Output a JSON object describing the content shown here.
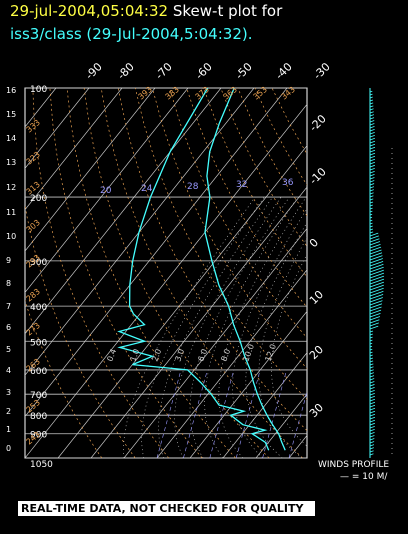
{
  "header": {
    "datetime": "29-jul-2004,05:04:32",
    "title_suffix": "Skew-t plot for",
    "subtitle": "iss3/class (29-Jul-2004,5:04:32)."
  },
  "banner": "REAL-TIME DATA, NOT CHECKED FOR QUALITY",
  "winds": {
    "label": "WINDS PROFILE",
    "scale": "— = 10 M/"
  },
  "colors": {
    "background": "#000000",
    "grid": "#c8c8c8",
    "trace": "#44ffff",
    "dry_adiabat": "#e8a050",
    "moist_adiabat": "#d0d0d0",
    "mixing_ratio": "#9999ff",
    "title_date": "#ffff44"
  },
  "chart_data": {
    "type": "line",
    "title": "Skew-t plot for",
    "xlabel": "",
    "ylabel": "",
    "pressure_levels": [
      "100",
      "200",
      "300",
      "400",
      "500",
      "600",
      "700",
      "800",
      "900",
      "1050"
    ],
    "temperature_ticks_top": [
      "-90",
      "-80",
      "-70",
      "-60",
      "-50",
      "-40",
      "-30"
    ],
    "temperature_ticks_right": [
      "-20",
      "-10",
      "0",
      "10",
      "20",
      "30"
    ],
    "height_km_ticks": [
      "0",
      "1",
      "2",
      "3",
      "4",
      "5",
      "6",
      "7",
      "8",
      "9",
      "10",
      "11",
      "12",
      "13",
      "14",
      "15",
      "16"
    ],
    "mixing_ratio_labels": [
      "20",
      "24",
      "28",
      "32",
      "36"
    ],
    "dry_adiabat_labels": [
      "243",
      "253",
      "263",
      "273",
      "283",
      "293",
      "303",
      "313",
      "323",
      "333",
      "393",
      "383",
      "373",
      "363",
      "353",
      "343"
    ],
    "moist_adiabat_labels": [
      "0.4",
      "1.0",
      "2.0",
      "3.0",
      "6.0",
      "8.0",
      "10.0",
      "12.0"
    ],
    "series": [
      {
        "kind": "temperature",
        "points": [
          [
            1000,
            27
          ],
          [
            950,
            24
          ],
          [
            900,
            21
          ],
          [
            850,
            17
          ],
          [
            800,
            13
          ],
          [
            750,
            9
          ],
          [
            700,
            5
          ],
          [
            650,
            1
          ],
          [
            600,
            -3
          ],
          [
            550,
            -8
          ],
          [
            500,
            -13
          ],
          [
            450,
            -19
          ],
          [
            400,
            -25
          ],
          [
            350,
            -33
          ],
          [
            300,
            -41
          ],
          [
            250,
            -50
          ],
          [
            200,
            -57
          ],
          [
            175,
            -63
          ],
          [
            150,
            -68
          ],
          [
            125,
            -72
          ],
          [
            100,
            -76
          ]
        ]
      },
      {
        "kind": "dewpoint",
        "points": [
          [
            1000,
            22
          ],
          [
            950,
            19
          ],
          [
            900,
            13
          ],
          [
            880,
            16
          ],
          [
            850,
            8
          ],
          [
            800,
            2
          ],
          [
            780,
            5
          ],
          [
            750,
            -4
          ],
          [
            700,
            -9
          ],
          [
            650,
            -15
          ],
          [
            600,
            -22
          ],
          [
            580,
            -40
          ],
          [
            550,
            -36
          ],
          [
            520,
            -48
          ],
          [
            500,
            -42
          ],
          [
            470,
            -52
          ],
          [
            450,
            -46
          ],
          [
            420,
            -52
          ],
          [
            400,
            -55
          ],
          [
            350,
            -60
          ],
          [
            300,
            -65
          ],
          [
            250,
            -70
          ],
          [
            200,
            -75
          ],
          [
            150,
            -80
          ],
          [
            100,
            -84
          ]
        ]
      }
    ]
  }
}
